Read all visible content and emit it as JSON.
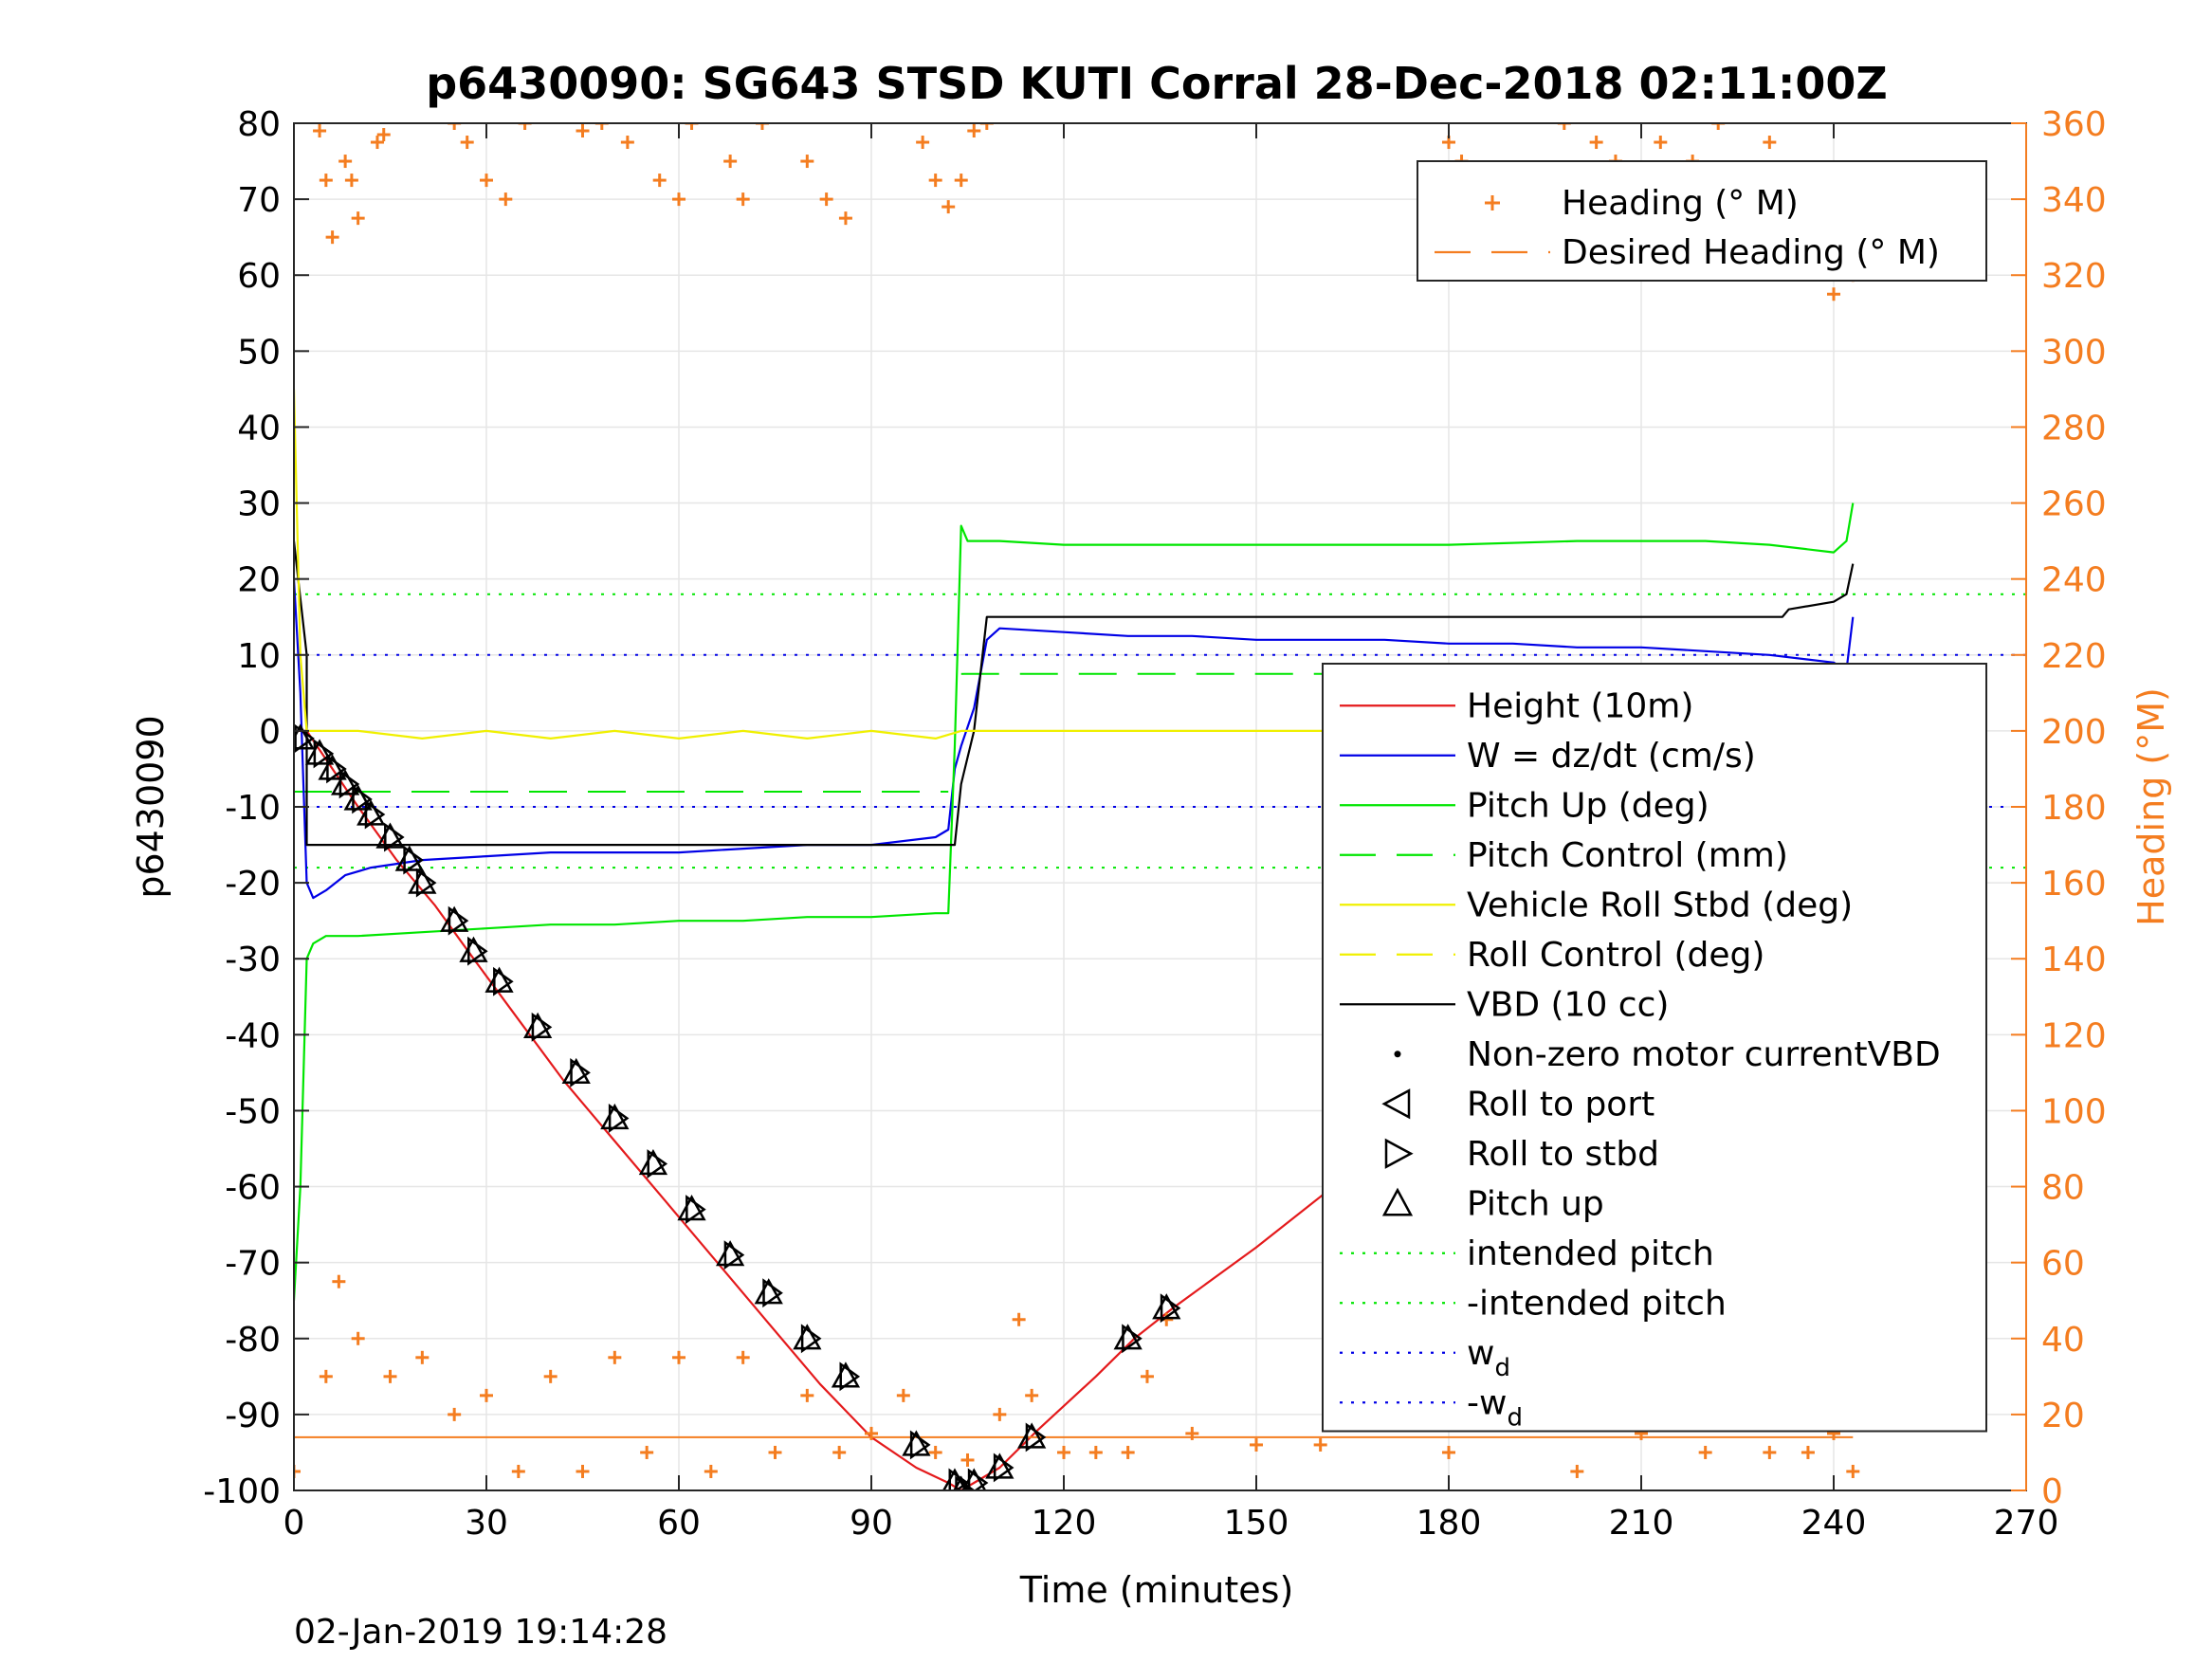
{
  "chart_data": {
    "type": "line",
    "title": "p6430090: SG643 STSD KUTI Corral 28-Dec-2018 02:11:00Z",
    "xlabel": "Time (minutes)",
    "ylabel": "p6430090",
    "y2label": "Heading (°M)",
    "xlim": [
      0,
      270
    ],
    "ylim": [
      -100,
      80
    ],
    "y2lim": [
      0,
      360
    ],
    "xticks": [
      "0",
      "30",
      "60",
      "90",
      "120",
      "150",
      "180",
      "210",
      "240",
      "270"
    ],
    "yticks": [
      "80",
      "70",
      "60",
      "50",
      "40",
      "30",
      "20",
      "10",
      "0",
      "-10",
      "-20",
      "-30",
      "-40",
      "-50",
      "-60",
      "-70",
      "-80",
      "-90",
      "-100"
    ],
    "y2ticks": [
      "360",
      "340",
      "320",
      "300",
      "280",
      "260",
      "240",
      "220",
      "200",
      "180",
      "160",
      "140",
      "120",
      "100",
      "80",
      "60",
      "40",
      "20",
      "0"
    ],
    "grid": true,
    "timestamp": "02-Jan-2019 19:14:28",
    "colors": {
      "heading": "#f47d20",
      "height": "#e41a1c",
      "w": "#0000e6",
      "pitch": "#00e600",
      "roll": "#f0f000",
      "vbd": "#000000",
      "wd": "#0000e6"
    },
    "legend_top": {
      "placement": "top-right",
      "entries": [
        {
          "label": "Heading (° M)",
          "style": "plus",
          "color": "#f47d20"
        },
        {
          "label": "Desired Heading (° M)",
          "style": "dash",
          "color": "#f47d20"
        }
      ]
    },
    "legend_main": {
      "placement": "lower-right",
      "entries": [
        {
          "label": "Height (10m)",
          "style": "line",
          "color": "#e41a1c"
        },
        {
          "label": "W = dz/dt (cm/s)",
          "style": "line",
          "color": "#0000e6"
        },
        {
          "label": "Pitch Up (deg)",
          "style": "line",
          "color": "#00e600"
        },
        {
          "label": "Pitch Control (mm)",
          "style": "dash",
          "color": "#00e600"
        },
        {
          "label": "Vehicle Roll Stbd (deg)",
          "style": "line",
          "color": "#f0f000"
        },
        {
          "label": "Roll Control (deg)",
          "style": "dash",
          "color": "#f0f000"
        },
        {
          "label": "VBD (10 cc)",
          "style": "line",
          "color": "#000000"
        },
        {
          "label": "Non-zero motor currentVBD",
          "style": "dot",
          "color": "#000000"
        },
        {
          "label": "Roll to port",
          "style": "tri-left",
          "color": "#000000"
        },
        {
          "label": "Roll to stbd",
          "style": "tri-right",
          "color": "#000000"
        },
        {
          "label": "Pitch up",
          "style": "tri-up",
          "color": "#000000"
        },
        {
          "label": "intended pitch",
          "style": "dotted",
          "color": "#00e600"
        },
        {
          "label": "-intended pitch",
          "style": "dotted",
          "color": "#00e600"
        },
        {
          "label": "w",
          "sub": "d",
          "style": "dotted",
          "color": "#0000e6"
        },
        {
          "label": "-w",
          "sub": "d",
          "style": "dotted",
          "color": "#0000e6"
        }
      ]
    },
    "series": [
      {
        "name": "Height (10m)",
        "type": "line",
        "x": [
          0,
          2,
          6,
          10,
          16,
          22,
          28,
          35,
          42,
          50,
          58,
          66,
          74,
          82,
          90,
          97,
          102,
          104,
          106,
          110,
          116,
          125,
          131,
          137,
          150,
          165,
          175,
          185,
          195,
          205,
          215,
          225,
          232,
          236,
          240,
          243
        ],
        "y": [
          0,
          0,
          -5,
          -10,
          -17,
          -23,
          -30,
          -38,
          -46,
          -54,
          -62,
          -70,
          -78,
          -86,
          -93,
          -97,
          -99,
          -100,
          -99,
          -97,
          -92,
          -85,
          -80,
          -76,
          -68,
          -58,
          -50,
          -43,
          -34,
          -26,
          -17,
          -11,
          -7,
          -4,
          -2,
          0
        ]
      },
      {
        "name": "W = dz/dt (cm/s)",
        "type": "line",
        "x": [
          0,
          1,
          2,
          3,
          5,
          8,
          12,
          20,
          30,
          40,
          50,
          60,
          70,
          80,
          90,
          100,
          102,
          103,
          104,
          106,
          108,
          110,
          120,
          130,
          140,
          150,
          160,
          170,
          180,
          190,
          200,
          210,
          220,
          230,
          240,
          242,
          243
        ],
        "y": [
          20,
          5,
          -20,
          -22,
          -21,
          -19,
          -18,
          -17,
          -16.5,
          -16,
          -16,
          -16,
          -15.5,
          -15,
          -15,
          -14,
          -13,
          -5,
          -2,
          3,
          12,
          13.5,
          13,
          12.5,
          12.5,
          12,
          12,
          12,
          11.5,
          11.5,
          11,
          11,
          10.5,
          10,
          9,
          8,
          15
        ]
      },
      {
        "name": "Pitch Up (deg)",
        "type": "line",
        "x": [
          0,
          1,
          2,
          3,
          5,
          10,
          20,
          30,
          40,
          50,
          60,
          70,
          80,
          90,
          100,
          102,
          103,
          104,
          105,
          110,
          120,
          140,
          160,
          180,
          200,
          220,
          230,
          240,
          242,
          243
        ],
        "y": [
          -75,
          -60,
          -30,
          -28,
          -27,
          -27,
          -26.5,
          -26,
          -25.5,
          -25.5,
          -25,
          -25,
          -24.5,
          -24.5,
          -24,
          -24,
          -2,
          27,
          25,
          25,
          24.5,
          24.5,
          24.5,
          24.5,
          25,
          25,
          24.5,
          23.5,
          25,
          30
        ]
      },
      {
        "name": "VBD (10 cc)",
        "type": "step",
        "x": [
          0,
          2,
          2,
          103,
          104,
          106,
          108,
          232,
          233,
          240,
          242,
          243
        ],
        "y": [
          25,
          10,
          -15,
          -15,
          -7,
          0,
          15,
          15,
          16,
          17,
          18,
          22
        ]
      },
      {
        "name": "Vehicle Roll Stbd (deg)",
        "type": "line",
        "x": [
          0,
          1,
          2,
          10,
          20,
          30,
          40,
          50,
          60,
          70,
          80,
          90,
          100,
          104,
          110,
          130,
          150,
          170,
          190,
          210,
          230,
          243
        ],
        "y": [
          45,
          10,
          0,
          0,
          -1,
          0,
          -1,
          0,
          -1,
          0,
          -1,
          0,
          -1,
          0,
          0,
          0,
          0,
          0,
          0,
          0,
          0,
          0
        ]
      }
    ],
    "reference_lines": [
      {
        "name": "intended pitch",
        "y": 18,
        "color": "#00e600",
        "style": "dotted"
      },
      {
        "name": "-intended pitch",
        "y": -18,
        "color": "#00e600",
        "style": "dotted"
      },
      {
        "name": "w_d",
        "y": 10,
        "color": "#0000e6",
        "style": "dotted"
      },
      {
        "name": "-w_d",
        "y": -10,
        "color": "#0000e6",
        "style": "dotted"
      },
      {
        "name": "Pitch Control (mm) descent",
        "y": -8,
        "x": [
          0,
          102
        ],
        "color": "#00e600",
        "style": "dash"
      },
      {
        "name": "Pitch Control (mm) ascent",
        "y": 7.5,
        "x": [
          104,
          243
        ],
        "color": "#00e600",
        "style": "dash"
      }
    ],
    "heading_series": {
      "name": "Heading (° M)",
      "axis": "right",
      "top_band_x": [
        4,
        5,
        6,
        8,
        9,
        10,
        13,
        14,
        25,
        27,
        30,
        33,
        36,
        45,
        48,
        52,
        57,
        60,
        62,
        68,
        70,
        73,
        80,
        83,
        86,
        98,
        100,
        102,
        104,
        106,
        108,
        180,
        182,
        198,
        200,
        203,
        206,
        210,
        213,
        218,
        222,
        230,
        238,
        240,
        243
      ],
      "top_band_y": [
        358,
        345,
        330,
        350,
        345,
        335,
        355,
        357,
        360,
        355,
        345,
        340,
        360,
        358,
        360,
        355,
        345,
        340,
        360,
        350,
        340,
        360,
        350,
        340,
        335,
        355,
        345,
        338,
        345,
        358,
        360,
        355,
        350,
        360,
        340,
        355,
        350,
        345,
        355,
        350,
        360,
        355,
        340,
        315,
        320
      ],
      "bottom_band_x": [
        0,
        5,
        7,
        10,
        15,
        20,
        25,
        30,
        35,
        40,
        45,
        50,
        55,
        60,
        65,
        70,
        75,
        80,
        85,
        90,
        95,
        100,
        105,
        110,
        113,
        115,
        120,
        125,
        130,
        133,
        136,
        140,
        150,
        160,
        165,
        170,
        180,
        190,
        200,
        210,
        220,
        230,
        233,
        236,
        240,
        243
      ],
      "bottom_band_y": [
        5,
        30,
        55,
        40,
        30,
        35,
        20,
        25,
        5,
        30,
        5,
        35,
        10,
        35,
        5,
        35,
        10,
        25,
        10,
        15,
        25,
        10,
        8,
        20,
        45,
        25,
        10,
        10,
        10,
        30,
        45,
        15,
        12,
        12,
        20,
        30,
        10,
        25,
        5,
        15,
        10,
        10,
        40,
        10,
        15,
        5
      ]
    },
    "desired_heading": {
      "name": "Desired Heading (° M)",
      "axis": "right",
      "y": 14,
      "x": [
        0,
        243
      ]
    },
    "markers": {
      "pitch_up": {
        "x": [
          1,
          4,
          6,
          8,
          10,
          12,
          15,
          18,
          20,
          25,
          28,
          32,
          38,
          44,
          50,
          56,
          62,
          68,
          74,
          80,
          86,
          97,
          103,
          104,
          106,
          110,
          115,
          130,
          136,
          165,
          171,
          173,
          178,
          185,
          200,
          205,
          210,
          215,
          218,
          223,
          230,
          233,
          236,
          240,
          243
        ],
        "y": [
          -1,
          -3,
          -5,
          -7,
          -9,
          -11,
          -14,
          -17,
          -20,
          -25,
          -29,
          -33,
          -39,
          -45,
          -51,
          -57,
          -63,
          -69,
          -74,
          -80,
          -85,
          -94,
          -99,
          -100,
          -99,
          -97,
          -93,
          -80,
          -76,
          -53,
          -48,
          -48,
          -44,
          -40,
          -29,
          -26,
          -21,
          -17,
          -17,
          -13,
          -8,
          -5,
          -4,
          -2,
          0
        ]
      }
    }
  }
}
